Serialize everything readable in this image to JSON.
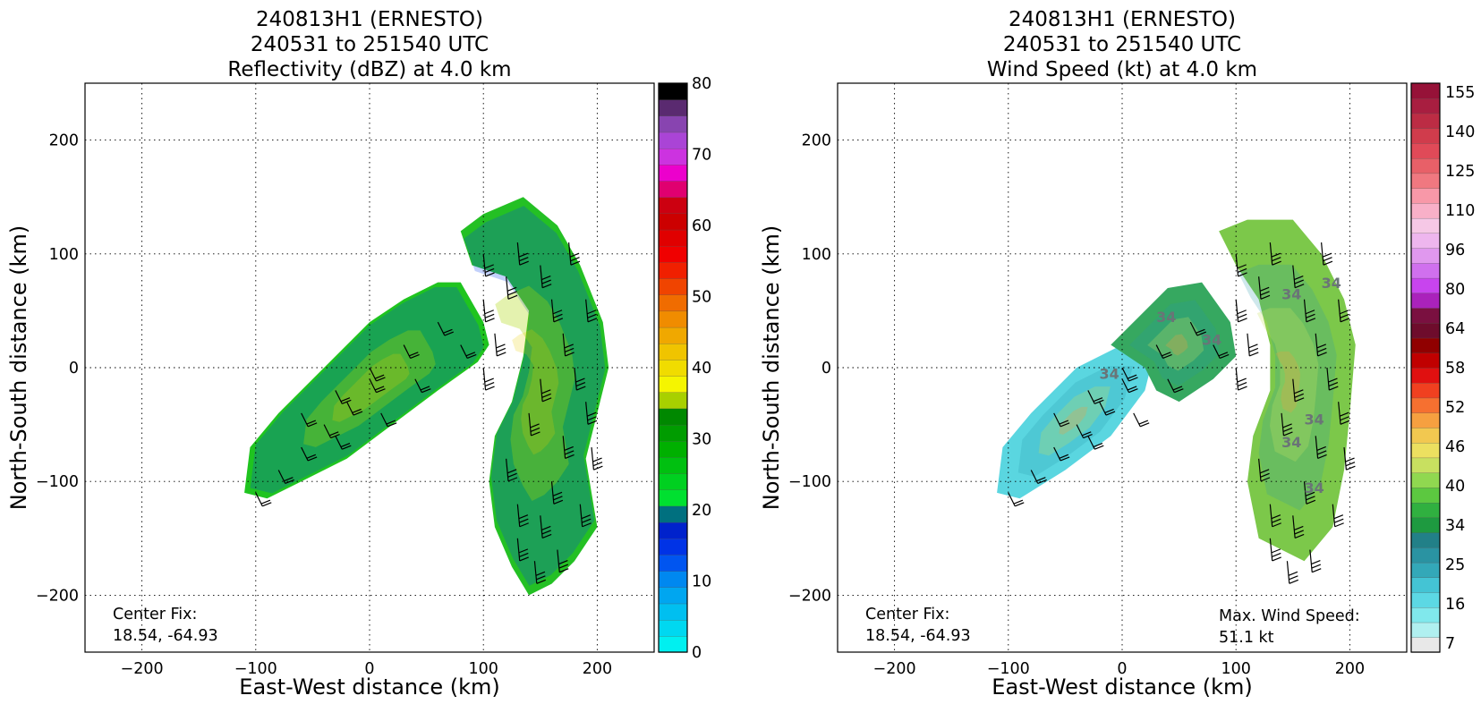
{
  "panels": [
    {
      "id": "reflectivity",
      "title_lines": [
        "240813H1 (ERNESTO)",
        "240531 to 251540 UTC",
        "Reflectivity (dBZ) at 4.0 km"
      ],
      "xlabel": "East-West distance (km)",
      "ylabel": "North-South distance (km)",
      "x_ticks": [
        "−200",
        "−100",
        "0",
        "100",
        "200"
      ],
      "y_ticks": [
        "200",
        "100",
        "0",
        "−100",
        "−200"
      ],
      "center_fix_label": "Center Fix:",
      "center_fix_value": "18.54, -64.93",
      "colorbar_ticks": [
        "0",
        "10",
        "20",
        "30",
        "40",
        "50",
        "60",
        "70",
        "80"
      ],
      "colorbar_colors": [
        "#00f0f0",
        "#00d8f0",
        "#00bff0",
        "#00a6f0",
        "#0088f0",
        "#0055f0",
        "#0033e6",
        "#0022cc",
        "#00707f",
        "#00e030",
        "#00d020",
        "#00c010",
        "#00b000",
        "#009c00",
        "#008800",
        "#a8d000",
        "#f5f500",
        "#f0dc00",
        "#f0c400",
        "#f0a800",
        "#f08c00",
        "#f06c00",
        "#f04400",
        "#f02000",
        "#f00000",
        "#e00000",
        "#cc0000",
        "#cc0010",
        "#e00070",
        "#ec00cc",
        "#cc33e0",
        "#aa44d6",
        "#8844b0",
        "#5a2a70",
        "#000000"
      ]
    },
    {
      "id": "wind",
      "title_lines": [
        "240813H1 (ERNESTO)",
        "240531 to 251540 UTC",
        "Wind Speed (kt) at 4.0 km"
      ],
      "xlabel": "East-West distance (km)",
      "ylabel": "North-South distance (km)",
      "x_ticks": [
        "−200",
        "−100",
        "0",
        "100",
        "200"
      ],
      "y_ticks": [
        "200",
        "100",
        "0",
        "−100",
        "−200"
      ],
      "center_fix_label": "Center Fix:",
      "center_fix_value": "18.54, -64.93",
      "max_wind_label": "Max. Wind Speed:",
      "max_wind_value": "51.1 kt",
      "contour_label": "34",
      "colorbar_ticks": [
        "7",
        "16",
        "25",
        "34",
        "40",
        "46",
        "52",
        "58",
        "64",
        "80",
        "96",
        "110",
        "125",
        "140",
        "155"
      ],
      "colorbar_colors": [
        "#e8e8e8",
        "#b0f0f0",
        "#80e8ec",
        "#5cd8e4",
        "#44c4d4",
        "#33a8b8",
        "#2a93a2",
        "#228088",
        "#1e9a40",
        "#30b040",
        "#5cc840",
        "#90d850",
        "#c8e060",
        "#ece060",
        "#f2c850",
        "#f6a040",
        "#f67030",
        "#f04020",
        "#e01010",
        "#c00000",
        "#900000",
        "#6e0c2c",
        "#7a1040",
        "#aa22bb",
        "#c844ee",
        "#d070ee",
        "#e098ee",
        "#eeb6ee",
        "#f6c8e6",
        "#f8b0c8",
        "#f898a8",
        "#f07880",
        "#e86068",
        "#e04a58",
        "#d03c4c",
        "#bc2c44",
        "#a81e40",
        "#961238"
      ]
    }
  ],
  "chart_data": [
    {
      "type": "heatmap",
      "title": "240813H1 (ERNESTO) 240531 to 251540 UTC Reflectivity (dBZ) at 4.0 km",
      "field": "Reflectivity (dBZ)",
      "xlabel": "East-West distance (km)",
      "ylabel": "North-South distance (km)",
      "xlim": [
        -250,
        250
      ],
      "ylim": [
        -250,
        250
      ],
      "colorbar_range": [
        0,
        80
      ],
      "grid": true,
      "center_fix": [
        18.54,
        -64.93
      ],
      "echo_regions_km": [
        {
          "name": "western band",
          "polygon": [
            [
              -110,
              -110
            ],
            [
              -105,
              -70
            ],
            [
              -80,
              -40
            ],
            [
              -40,
              0
            ],
            [
              0,
              40
            ],
            [
              30,
              60
            ],
            [
              60,
              75
            ],
            [
              80,
              75
            ],
            [
              100,
              40
            ],
            [
              105,
              20
            ],
            [
              95,
              5
            ],
            [
              60,
              -20
            ],
            [
              20,
              -50
            ],
            [
              -20,
              -80
            ],
            [
              -60,
              -100
            ],
            [
              -90,
              -115
            ]
          ]
        },
        {
          "name": "eastern band",
          "polygon": [
            [
              80,
              120
            ],
            [
              100,
              135
            ],
            [
              135,
              150
            ],
            [
              165,
              125
            ],
            [
              185,
              90
            ],
            [
              205,
              40
            ],
            [
              210,
              0
            ],
            [
              200,
              -40
            ],
            [
              190,
              -80
            ],
            [
              200,
              -140
            ],
            [
              180,
              -170
            ],
            [
              160,
              -190
            ],
            [
              140,
              -200
            ],
            [
              125,
              -175
            ],
            [
              110,
              -140
            ],
            [
              105,
              -100
            ],
            [
              110,
              -60
            ],
            [
              125,
              -30
            ],
            [
              135,
              10
            ],
            [
              140,
              50
            ],
            [
              120,
              80
            ],
            [
              90,
              90
            ]
          ]
        }
      ],
      "wind_barbs_km": [
        [
          -100,
          -110
        ],
        [
          -80,
          -90
        ],
        [
          -60,
          -70
        ],
        [
          -40,
          -50
        ],
        [
          -20,
          -30
        ],
        [
          0,
          -10
        ],
        [
          -60,
          -40
        ],
        [
          -30,
          -20
        ],
        [
          0,
          0
        ],
        [
          30,
          20
        ],
        [
          60,
          40
        ],
        [
          80,
          20
        ],
        [
          40,
          -10
        ],
        [
          10,
          -40
        ],
        [
          -30,
          -60
        ],
        [
          100,
          100
        ],
        [
          120,
          80
        ],
        [
          100,
          60
        ],
        [
          110,
          30
        ],
        [
          100,
          0
        ],
        [
          130,
          110
        ],
        [
          150,
          90
        ],
        [
          160,
          60
        ],
        [
          170,
          30
        ],
        [
          180,
          0
        ],
        [
          190,
          -30
        ],
        [
          170,
          -60
        ],
        [
          160,
          -100
        ],
        [
          150,
          -130
        ],
        [
          130,
          -150
        ],
        [
          140,
          -40
        ],
        [
          150,
          -10
        ],
        [
          120,
          -80
        ],
        [
          130,
          -120
        ],
        [
          175,
          110
        ],
        [
          190,
          60
        ],
        [
          195,
          -70
        ],
        [
          185,
          -120
        ],
        [
          165,
          -160
        ],
        [
          145,
          -170
        ]
      ]
    },
    {
      "type": "heatmap",
      "title": "240813H1 (ERNESTO) 240531 to 251540 UTC Wind Speed (kt) at 4.0 km",
      "field": "Wind Speed (kt)",
      "xlabel": "East-West distance (km)",
      "ylabel": "North-South distance (km)",
      "xlim": [
        -250,
        250
      ],
      "ylim": [
        -250,
        250
      ],
      "colorbar_range": [
        7,
        155
      ],
      "grid": true,
      "center_fix": [
        18.54,
        -64.93
      ],
      "max_wind_kt": 51.1,
      "contour_level_kt": 34,
      "wind_regions_km": [
        {
          "name": "western low-wind band",
          "polygon": [
            [
              -110,
              -110
            ],
            [
              -105,
              -70
            ],
            [
              -80,
              -40
            ],
            [
              -40,
              0
            ],
            [
              0,
              20
            ],
            [
              30,
              20
            ],
            [
              20,
              -20
            ],
            [
              -10,
              -60
            ],
            [
              -50,
              -90
            ],
            [
              -90,
              -115
            ]
          ]
        },
        {
          "name": "western moderate band",
          "polygon": [
            [
              -10,
              20
            ],
            [
              10,
              40
            ],
            [
              40,
              70
            ],
            [
              70,
              75
            ],
            [
              95,
              40
            ],
            [
              100,
              10
            ],
            [
              80,
              -10
            ],
            [
              50,
              -30
            ],
            [
              30,
              -20
            ],
            [
              20,
              0
            ]
          ]
        },
        {
          "name": "eastern band",
          "polygon": [
            [
              85,
              120
            ],
            [
              110,
              130
            ],
            [
              150,
              130
            ],
            [
              175,
              100
            ],
            [
              195,
              60
            ],
            [
              205,
              20
            ],
            [
              200,
              -40
            ],
            [
              195,
              -90
            ],
            [
              185,
              -140
            ],
            [
              160,
              -170
            ],
            [
              140,
              -160
            ],
            [
              120,
              -150
            ],
            [
              110,
              -100
            ],
            [
              115,
              -60
            ],
            [
              130,
              -20
            ],
            [
              130,
              20
            ],
            [
              120,
              60
            ],
            [
              100,
              90
            ]
          ]
        }
      ],
      "wind_barbs_km": [
        [
          -100,
          -110
        ],
        [
          -80,
          -90
        ],
        [
          -60,
          -70
        ],
        [
          -40,
          -50
        ],
        [
          -20,
          -30
        ],
        [
          0,
          -10
        ],
        [
          -60,
          -40
        ],
        [
          -30,
          -20
        ],
        [
          0,
          0
        ],
        [
          30,
          20
        ],
        [
          60,
          40
        ],
        [
          80,
          20
        ],
        [
          40,
          -10
        ],
        [
          10,
          -40
        ],
        [
          -30,
          -60
        ],
        [
          100,
          100
        ],
        [
          120,
          80
        ],
        [
          100,
          60
        ],
        [
          110,
          30
        ],
        [
          100,
          0
        ],
        [
          130,
          110
        ],
        [
          150,
          90
        ],
        [
          160,
          60
        ],
        [
          170,
          30
        ],
        [
          180,
          0
        ],
        [
          190,
          -30
        ],
        [
          170,
          -60
        ],
        [
          160,
          -100
        ],
        [
          150,
          -130
        ],
        [
          130,
          -150
        ],
        [
          140,
          -40
        ],
        [
          150,
          -10
        ],
        [
          120,
          -80
        ],
        [
          130,
          -120
        ],
        [
          175,
          110
        ],
        [
          190,
          60
        ],
        [
          195,
          -70
        ],
        [
          185,
          -120
        ],
        [
          165,
          -160
        ],
        [
          145,
          -170
        ]
      ]
    }
  ]
}
